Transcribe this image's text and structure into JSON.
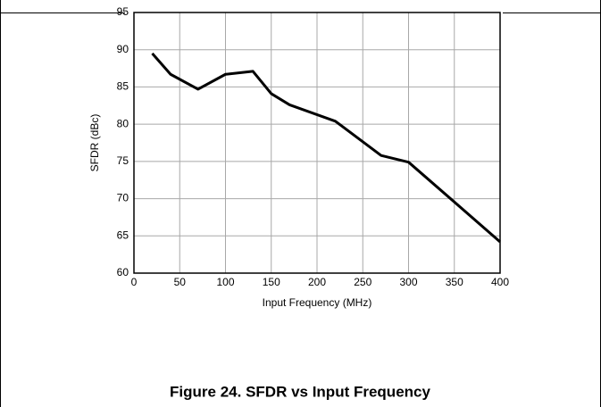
{
  "chart_data": {
    "type": "line",
    "caption": "Figure 24. SFDR vs Input Frequency",
    "x_label": "Input Frequency (MHz)",
    "y_label": "SFDR (dBc)",
    "x": [
      20,
      40,
      70,
      100,
      130,
      150,
      170,
      220,
      270,
      300,
      400
    ],
    "series": [
      {
        "name": "SFDR",
        "color": "#000000",
        "values": [
          89.5,
          86.7,
          84.7,
          86.7,
          87.1,
          84.1,
          82.6,
          80.4,
          75.8,
          74.9,
          64.2
        ]
      }
    ],
    "xlim": [
      0,
      400
    ],
    "xticks": [
      0,
      50,
      100,
      150,
      200,
      250,
      300,
      350,
      400
    ],
    "ylim": [
      60,
      95
    ],
    "yticks": [
      60,
      65,
      70,
      75,
      80,
      85,
      90,
      95
    ],
    "grid": true
  }
}
